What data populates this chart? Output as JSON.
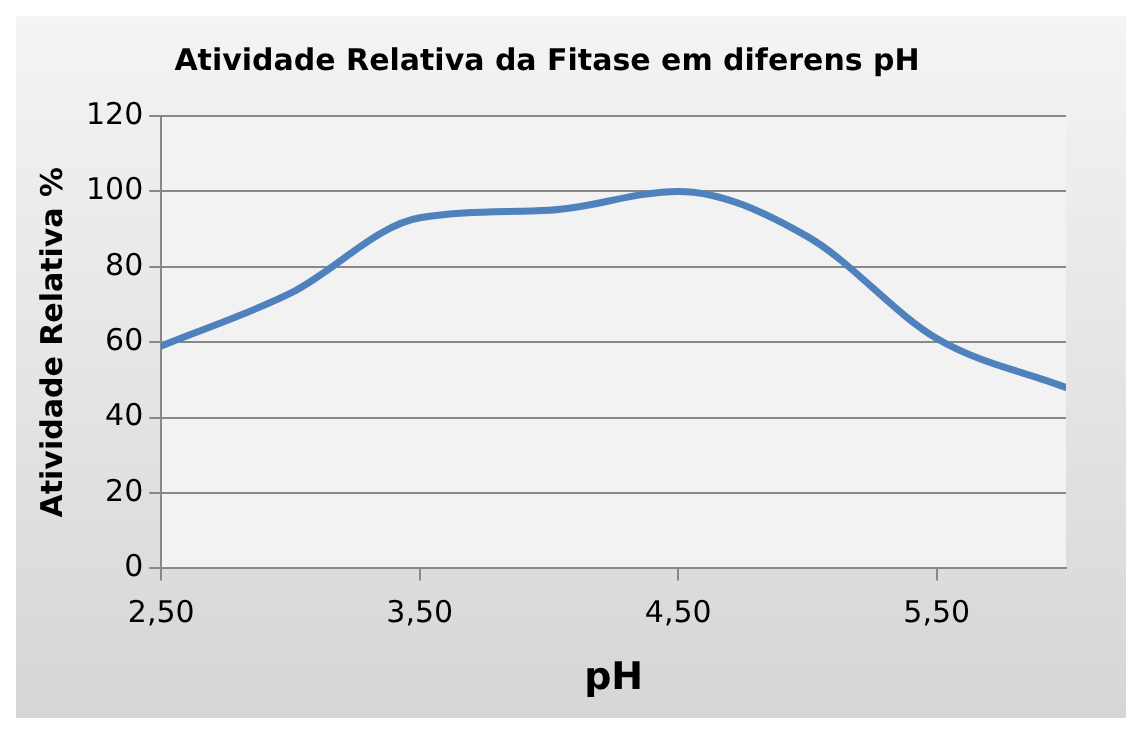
{
  "chart_data": {
    "type": "line",
    "title": "Atividade Relativa da Fitase em diferens pH",
    "xlabel": "pH",
    "ylabel": "Atividade Relativa %",
    "x": [
      2.5,
      3.0,
      3.5,
      4.0,
      4.5,
      5.0,
      5.5,
      6.0
    ],
    "series": [
      {
        "color": "#4f81bd",
        "values": [
          59,
          73,
          93,
          95,
          100,
          88,
          61,
          48
        ]
      }
    ],
    "xlim": [
      2.5,
      6.0
    ],
    "xticks": [
      {
        "value": 2.5,
        "label": "2,50"
      },
      {
        "value": 3.5,
        "label": "3,50"
      },
      {
        "value": 4.5,
        "label": "4,50"
      },
      {
        "value": 5.5,
        "label": "5,50"
      }
    ],
    "ylim": [
      0,
      120
    ],
    "yticks": [
      0,
      20,
      40,
      60,
      80,
      100,
      120
    ],
    "grid": "y",
    "legend": false,
    "marker": "none",
    "line_style": "solid"
  }
}
